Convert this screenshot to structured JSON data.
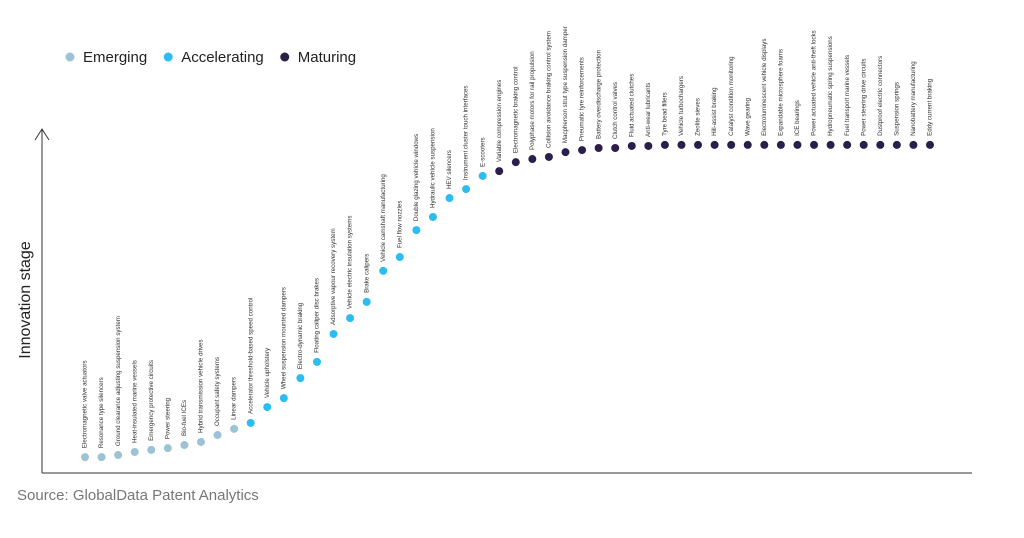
{
  "chart_data": {
    "type": "scatter",
    "y_label": "Innovation stage",
    "source": "Source: GlobalData Patent Analytics",
    "ylim": [
      0,
      100
    ],
    "categories": [
      "Electromagnetic valve actuators",
      "Resonance type silencers",
      "Ground clearance adjusting suspension system",
      "Heat-insulated marine vessels",
      "Emergency protective circuits",
      "Power steering",
      "Bio-fuel ICEs",
      "Hybrid transmission vehicle drives",
      "Occupant safety systems",
      "Linear dampers",
      "Accelerator threshold-based speed control",
      "Vehicle upholstery",
      "Wheel suspension mounted dampers",
      "Electro-dynamic braking",
      "Floating caliper disc brakes",
      "Adsorptive vapour recovery system",
      "Vehicle electric insulation systems",
      "Brake calipers",
      "Vehicle camshaft manufacturing",
      "Fuel flow nozzles",
      "Double glazing vehicle windows",
      "Hydraulic vehicle suspension",
      "HEV silencers",
      "Instrument cluster touch interfaces",
      "E-scooters",
      "Variable compression engines",
      "Electromagnetic braking control",
      "Polyphase motors for rail propulsion",
      "Collision avoidance braking control system",
      "Macpherson strut type suspension damper",
      "Pneumatic tyre reinforcements",
      "Battery overdischarge protection",
      "Clutch control valves",
      "Fluid actuated clutches",
      "Anti-wear lubricants",
      "Tyre bead fillers",
      "Vehicle turbochargers",
      "Zeolite sieves",
      "Hill-assist braking",
      "Catalyst condition monitoring",
      "Wave gearing",
      "Electroluminescent vehicle displays",
      "Expandable microsphere foams",
      "ICE bearings",
      "Power actuated vehicle anti-theft locks",
      "Hydropneumatic spring suspensions",
      "Fuel transport marine vessels",
      "Power steering drive circuits",
      "Dustproof electric connectors",
      "Suspension springs",
      "Nanobattery manufacturing",
      "Eddy current braking"
    ],
    "series": [
      {
        "name": "Emerging",
        "color": "#9cc3d5",
        "values": [
          4.6,
          4.6,
          5.2,
          6.1,
          6.7,
          7.2,
          8.1,
          9.0,
          11.0,
          12.8,
          null,
          null,
          null,
          null,
          null,
          null,
          null,
          null,
          null,
          null,
          null,
          null,
          null,
          null,
          null,
          null,
          null,
          null,
          null,
          null,
          null,
          null,
          null,
          null,
          null,
          null,
          null,
          null,
          null,
          null,
          null,
          null,
          null,
          null,
          null,
          null,
          null,
          null,
          null,
          null,
          null,
          null
        ]
      },
      {
        "name": "Accelerating",
        "color": "#2bbcf0",
        "values": [
          null,
          null,
          null,
          null,
          null,
          null,
          null,
          null,
          null,
          null,
          14.5,
          19.1,
          21.7,
          27.5,
          32.2,
          40.3,
          44.9,
          49.6,
          58.6,
          62.6,
          70.4,
          74.2,
          79.7,
          82.3,
          86.1,
          null,
          null,
          null,
          null,
          null,
          null,
          null,
          null,
          null,
          null,
          null,
          null,
          null,
          null,
          null,
          null,
          null,
          null,
          null,
          null,
          null,
          null,
          null,
          null,
          null,
          null,
          null
        ]
      },
      {
        "name": "Maturing",
        "color": "#2a1f4a",
        "values": [
          null,
          null,
          null,
          null,
          null,
          null,
          null,
          null,
          null,
          null,
          null,
          null,
          null,
          null,
          null,
          null,
          null,
          null,
          null,
          null,
          null,
          null,
          null,
          null,
          null,
          87.5,
          90.1,
          91.0,
          91.6,
          93.0,
          93.6,
          94.2,
          94.2,
          94.8,
          94.8,
          95.1,
          95.1,
          95.1,
          95.1,
          95.1,
          95.1,
          95.1,
          95.1,
          95.1,
          95.1,
          95.1,
          95.1,
          95.1,
          95.1,
          95.1,
          95.1,
          95.1
        ]
      }
    ]
  }
}
